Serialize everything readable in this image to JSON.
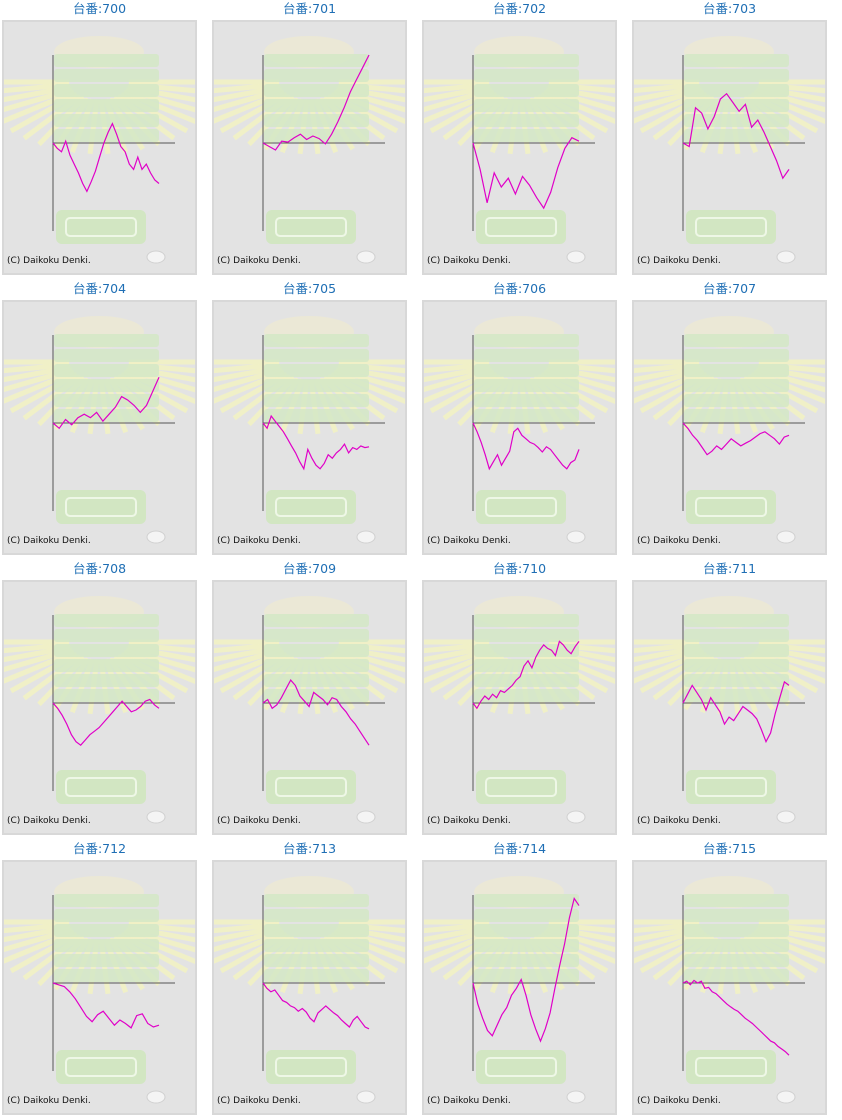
{
  "colors": {
    "title": "#1f6fb5",
    "line": "#e000c8",
    "axis": "#555555",
    "panel_bg": "#e3e3e3"
  },
  "chart_data": [
    {
      "type": "line",
      "title": "台番:700",
      "credit": "(C) Daikoku Denki.",
      "series": [
        {
          "values": [
            0,
            -300,
            -500,
            100,
            -700,
            -1200,
            -1700,
            -2300,
            -2750,
            -2200,
            -1600,
            -800,
            0,
            600,
            1100,
            500,
            -200,
            -500,
            -1200,
            -1500,
            -800,
            -1500,
            -1200,
            -1700,
            -2100,
            -2300
          ]
        }
      ]
    },
    {
      "type": "line",
      "title": "台番:701",
      "credit": "(C) Daikoku Denki.",
      "series": [
        {
          "values": [
            0,
            -200,
            -400,
            100,
            50,
            300,
            500,
            200,
            400,
            250,
            -50,
            500,
            1200,
            2000,
            2900,
            3600,
            4300,
            5000
          ]
        }
      ]
    },
    {
      "type": "line",
      "title": "台番:702",
      "credit": "(C) Daikoku Denki.",
      "series": [
        {
          "values": [
            0,
            -1500,
            -3400,
            -1700,
            -2500,
            -2000,
            -2900,
            -1900,
            -2400,
            -3100,
            -3700,
            -2800,
            -1400,
            -300,
            300,
            100
          ]
        }
      ]
    },
    {
      "type": "line",
      "title": "台番:703",
      "credit": "(C) Daikoku Denki.",
      "series": [
        {
          "values": [
            0,
            -200,
            2000,
            1700,
            800,
            1500,
            2500,
            2800,
            2300,
            1800,
            2200,
            900,
            1300,
            600,
            -200,
            -1000,
            -2000,
            -1500
          ]
        }
      ]
    },
    {
      "type": "line",
      "title": "台番:704",
      "credit": "(C) Daikoku Denki.",
      "series": [
        {
          "values": [
            0,
            -300,
            200,
            -100,
            300,
            500,
            300,
            600,
            100,
            500,
            900,
            1500,
            1300,
            1000,
            600,
            1000,
            1800,
            2600
          ]
        }
      ]
    },
    {
      "type": "line",
      "title": "台番:705",
      "credit": "(C) Daikoku Denki.",
      "series": [
        {
          "values": [
            0,
            -300,
            400,
            100,
            -200,
            -500,
            -900,
            -1300,
            -1700,
            -2200,
            -2600,
            -1500,
            -2000,
            -2400,
            -2600,
            -2300,
            -1800,
            -2000,
            -1700,
            -1500,
            -1200,
            -1700,
            -1400,
            -1500,
            -1300,
            -1400,
            -1350
          ]
        }
      ]
    },
    {
      "type": "line",
      "title": "台番:706",
      "credit": "(C) Daikoku Denki.",
      "series": [
        {
          "values": [
            0,
            -500,
            -1100,
            -1800,
            -2600,
            -2200,
            -1800,
            -2400,
            -2000,
            -1600,
            -500,
            -300,
            -700,
            -900,
            -1100,
            -1200,
            -1400,
            -1650,
            -1350,
            -1500,
            -1800,
            -2100,
            -2400,
            -2600,
            -2250,
            -2100,
            -1500
          ]
        }
      ]
    },
    {
      "type": "line",
      "title": "台番:707",
      "credit": "(C) Daikoku Denki.",
      "series": [
        {
          "values": [
            0,
            -300,
            -700,
            -1000,
            -1400,
            -1800,
            -1600,
            -1300,
            -1500,
            -1200,
            -900,
            -1100,
            -1300,
            -1150,
            -1000,
            -800,
            -600,
            -500,
            -700,
            -900,
            -1200,
            -800,
            -700
          ]
        }
      ]
    },
    {
      "type": "line",
      "title": "台番:708",
      "credit": "(C) Daikoku Denki.",
      "series": [
        {
          "values": [
            0,
            -300,
            -700,
            -1200,
            -1800,
            -2200,
            -2400,
            -2100,
            -1800,
            -1600,
            -1400,
            -1100,
            -800,
            -500,
            -200,
            100,
            -200,
            -500,
            -400,
            -200,
            100,
            200,
            -100,
            -300
          ]
        }
      ]
    },
    {
      "type": "line",
      "title": "台番:709",
      "credit": "(C) Daikoku Denki.",
      "series": [
        {
          "values": [
            0,
            200,
            -300,
            -100,
            300,
            800,
            1300,
            1000,
            400,
            100,
            -200,
            600,
            400,
            200,
            -100,
            300,
            200,
            -200,
            -500,
            -900,
            -1200,
            -1600,
            -2000,
            -2400
          ]
        }
      ]
    },
    {
      "type": "line",
      "title": "台番:710",
      "credit": "(C) Daikoku Denki.",
      "series": [
        {
          "values": [
            0,
            -300,
            100,
            400,
            200,
            500,
            300,
            700,
            600,
            800,
            1000,
            1300,
            1500,
            2100,
            2400,
            2000,
            2600,
            3000,
            3300,
            3100,
            3000,
            2700,
            3500,
            3300,
            3000,
            2800,
            3200,
            3500
          ]
        }
      ]
    },
    {
      "type": "line",
      "title": "台番:711",
      "credit": "(C) Daikoku Denki.",
      "series": [
        {
          "values": [
            0,
            500,
            1000,
            600,
            200,
            -400,
            300,
            -100,
            -500,
            -1200,
            -800,
            -1000,
            -600,
            -200,
            -400,
            -600,
            -900,
            -1500,
            -2200,
            -1700,
            -600,
            300,
            1200,
            1000
          ]
        }
      ]
    },
    {
      "type": "line",
      "title": "台番:712",
      "credit": "(C) Daikoku Denki.",
      "series": [
        {
          "values": [
            0,
            -100,
            -200,
            -500,
            -900,
            -1400,
            -1900,
            -2200,
            -1800,
            -1600,
            -2000,
            -2400,
            -2100,
            -2300,
            -2550,
            -1850,
            -1750,
            -2300,
            -2500,
            -2400
          ]
        }
      ]
    },
    {
      "type": "line",
      "title": "台番:713",
      "credit": "(C) Daikoku Denki.",
      "series": [
        {
          "values": [
            0,
            -300,
            -500,
            -400,
            -700,
            -1000,
            -1100,
            -1300,
            -1400,
            -1600,
            -1450,
            -1650,
            -2000,
            -2200,
            -1700,
            -1500,
            -1300,
            -1500,
            -1700,
            -1850,
            -2100,
            -2300,
            -2500,
            -2100,
            -1900,
            -2200,
            -2500,
            -2600
          ]
        }
      ]
    },
    {
      "type": "line",
      "title": "台番:714",
      "credit": "(C) Daikoku Denki.",
      "series": [
        {
          "values": [
            0,
            -1200,
            -2000,
            -2700,
            -3000,
            -2400,
            -1800,
            -1400,
            -700,
            -300,
            200,
            -700,
            -1800,
            -2600,
            -3300,
            -2600,
            -1700,
            -300,
            1000,
            2200,
            3700,
            4800,
            4400
          ]
        }
      ]
    },
    {
      "type": "line",
      "title": "台番:715",
      "credit": "(C) Daikoku Denki.",
      "series": [
        {
          "values": [
            0,
            100,
            -100,
            150,
            0,
            100,
            -300,
            -250,
            -500,
            -600,
            -800,
            -1000,
            -1200,
            -1350,
            -1500,
            -1600,
            -1800,
            -2000,
            -2150,
            -2300,
            -2500,
            -2700,
            -2900,
            -3100,
            -3300,
            -3400,
            -3600,
            -3750,
            -3900,
            -4100
          ]
        }
      ]
    }
  ]
}
